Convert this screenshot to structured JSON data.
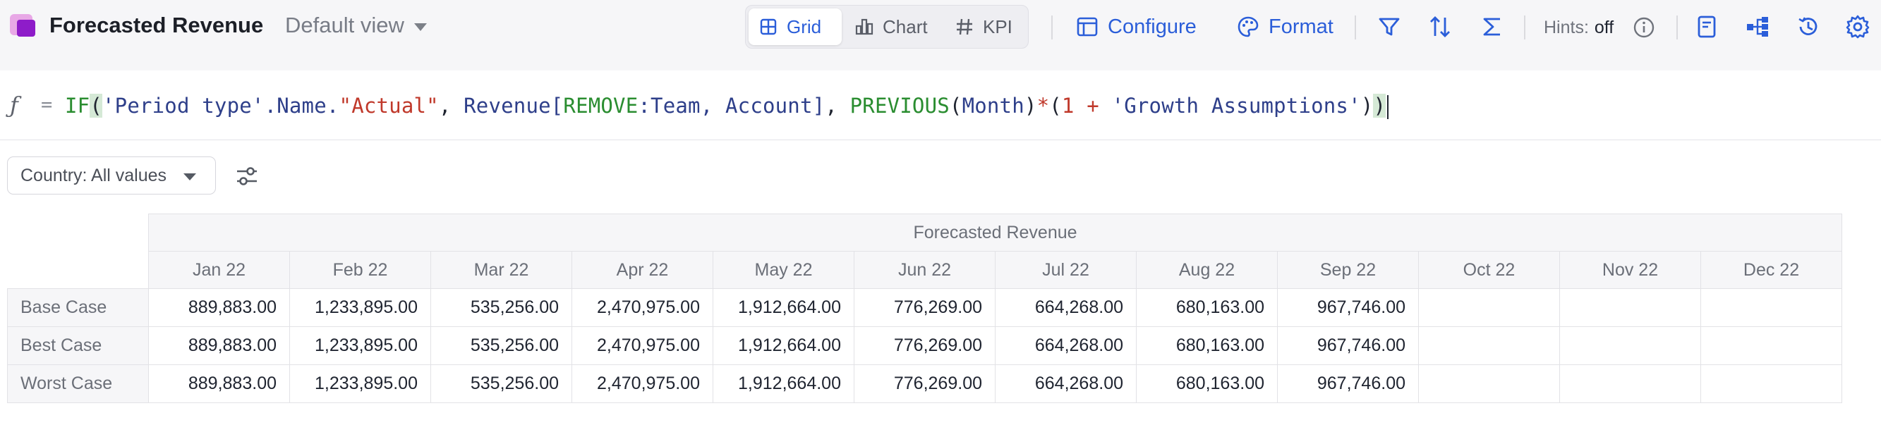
{
  "header": {
    "title": "Forecasted Revenue",
    "view_label": "Default view"
  },
  "view_toggle": [
    {
      "label": "Grid",
      "icon": "grid-icon",
      "active": true
    },
    {
      "label": "Chart",
      "icon": "bar-chart-icon",
      "active": false
    },
    {
      "label": "KPI",
      "icon": "hash-icon",
      "active": false
    }
  ],
  "toolbar": {
    "configure_label": "Configure",
    "format_label": "Format",
    "hints_label": "Hints:",
    "hints_value": "off"
  },
  "formula": {
    "fx_symbol": "ƒ",
    "equals": "="
  },
  "filters": {
    "country_label": "Country: All values"
  },
  "table": {
    "group_header": "Forecasted Revenue",
    "columns": [
      "Jan 22",
      "Feb 22",
      "Mar 22",
      "Apr 22",
      "May 22",
      "Jun 22",
      "Jul 22",
      "Aug 22",
      "Sep 22",
      "Oct 22",
      "Nov 22",
      "Dec 22"
    ],
    "rows": [
      {
        "label": "Base Case",
        "values": [
          "889,883.00",
          "1,233,895.00",
          "535,256.00",
          "2,470,975.00",
          "1,912,664.00",
          "776,269.00",
          "664,268.00",
          "680,163.00",
          "967,746.00",
          "",
          "",
          ""
        ]
      },
      {
        "label": "Best Case",
        "values": [
          "889,883.00",
          "1,233,895.00",
          "535,256.00",
          "2,470,975.00",
          "1,912,664.00",
          "776,269.00",
          "664,268.00",
          "680,163.00",
          "967,746.00",
          "",
          "",
          ""
        ]
      },
      {
        "label": "Worst Case",
        "values": [
          "889,883.00",
          "1,233,895.00",
          "535,256.00",
          "2,470,975.00",
          "1,912,664.00",
          "776,269.00",
          "664,268.00",
          "680,163.00",
          "967,746.00",
          "",
          "",
          ""
        ]
      }
    ]
  },
  "colors": {
    "accent": "#2b5ed9",
    "function": "#2a8d30",
    "string": "#c0392b",
    "reference": "#2e3f8a"
  }
}
